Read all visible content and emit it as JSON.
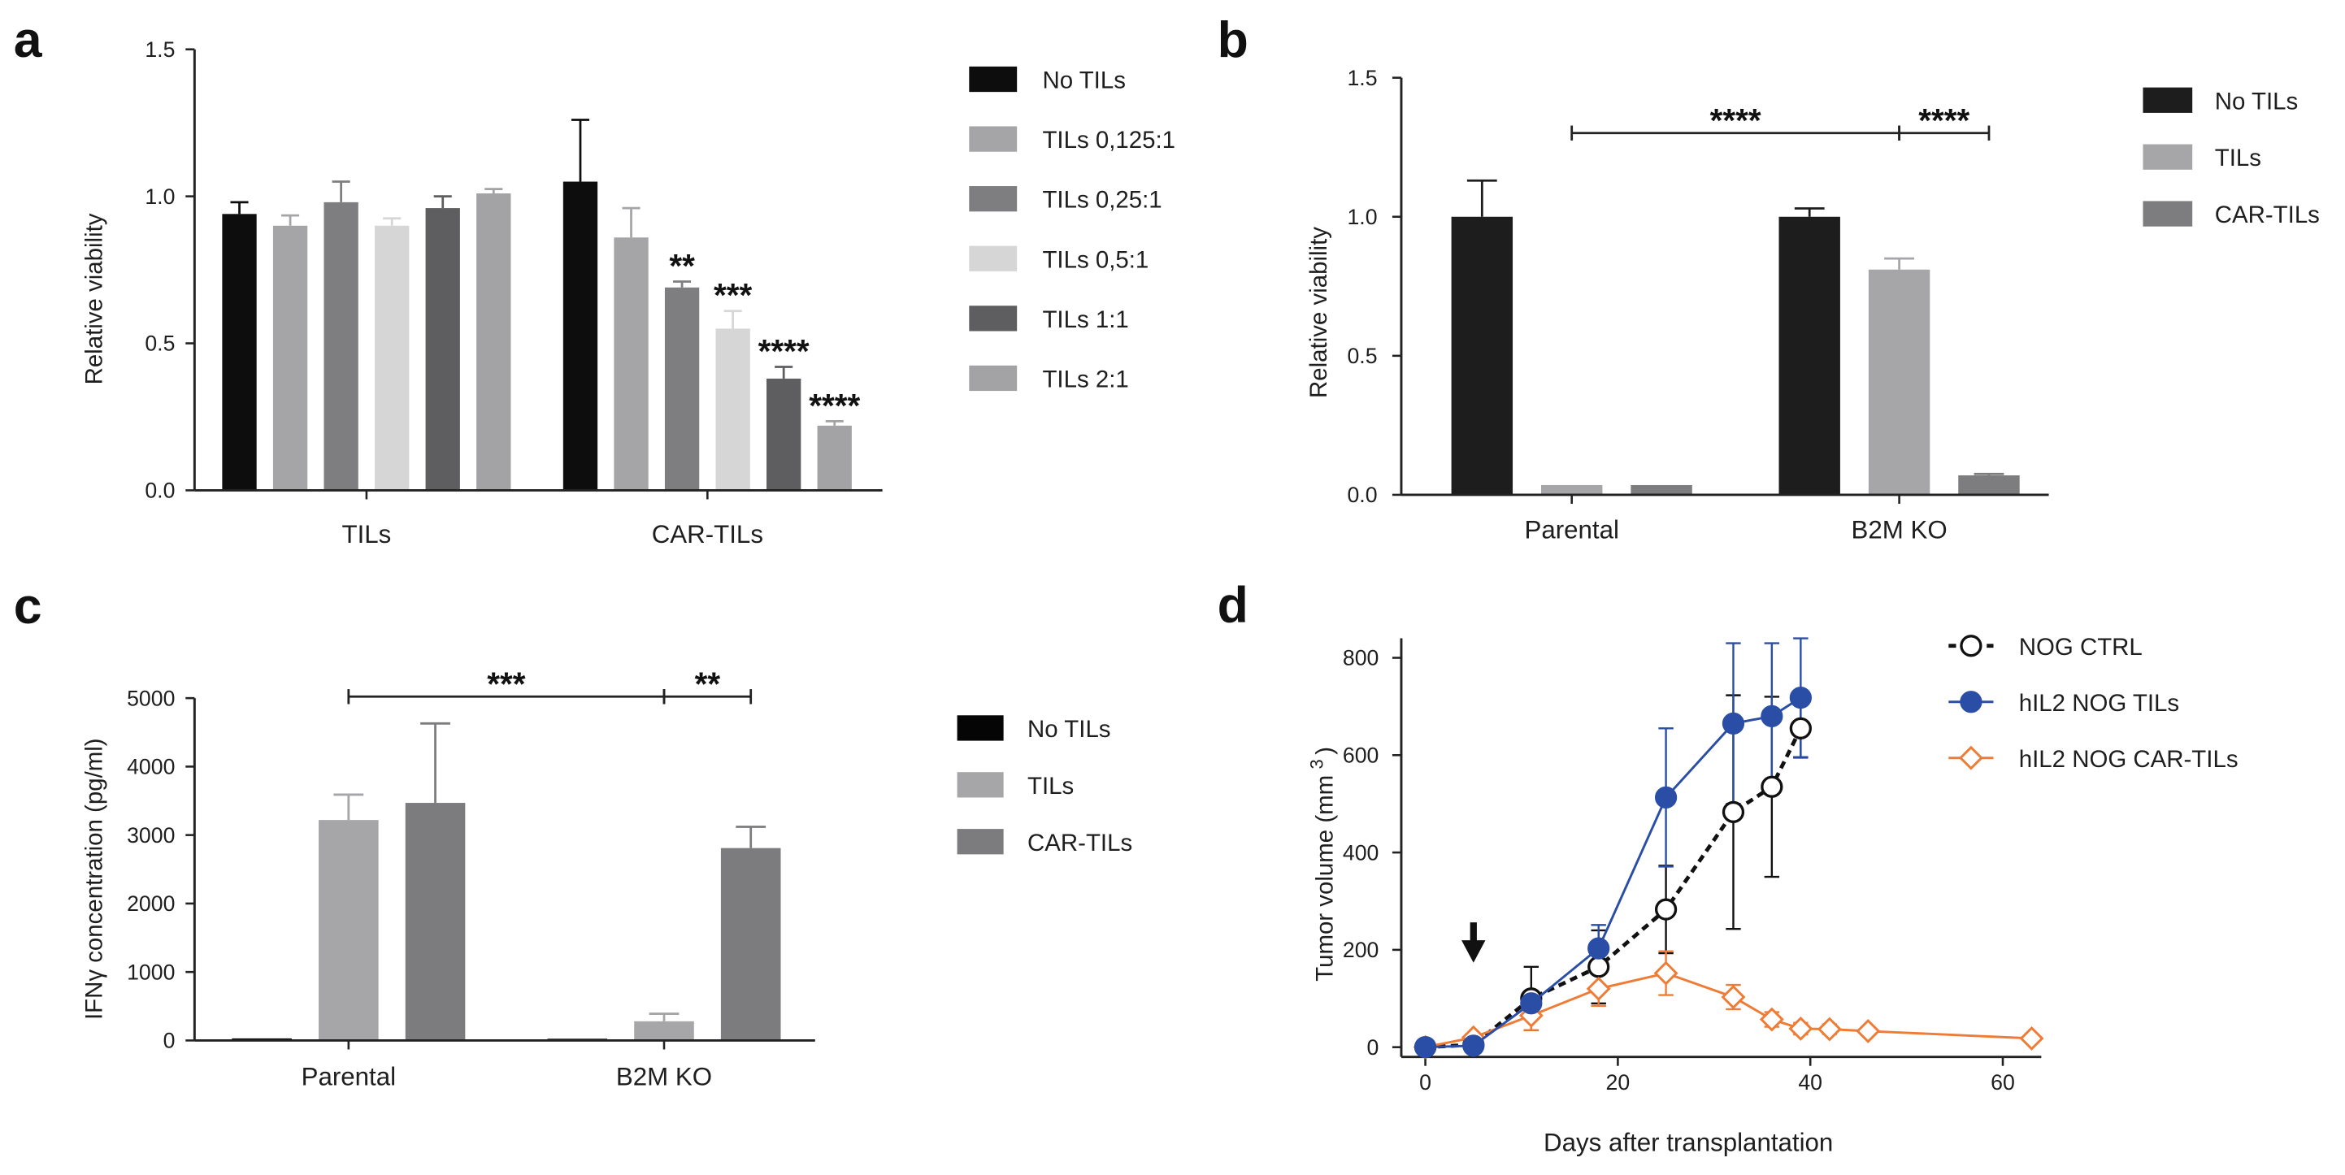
{
  "chart_data": [
    {
      "panel_label": "a",
      "type": "bar",
      "title": "",
      "xlabel": "",
      "ylabel": "Relative viability",
      "ylim": [
        0,
        1.5
      ],
      "yticks": [
        "0.0",
        "0.5",
        "1.0",
        "1.5"
      ],
      "categories": [
        "TILs",
        "CAR-TILs"
      ],
      "series": [
        {
          "name": "No TILs",
          "color": "#0d0d0d",
          "values": [
            0.94,
            1.05
          ],
          "error": [
            0.04,
            0.21
          ]
        },
        {
          "name": "TILs 0,125:1",
          "color": "#a5a5a8",
          "values": [
            0.9,
            0.86
          ],
          "error": [
            0.035,
            0.1
          ]
        },
        {
          "name": "TILs 0,25:1",
          "color": "#7e7e80",
          "values": [
            0.98,
            0.69
          ],
          "error": [
            0.07,
            0.02
          ]
        },
        {
          "name": "TILs 0,5:1",
          "color": "#d6d6d6",
          "values": [
            0.9,
            0.55
          ],
          "error": [
            0.025,
            0.06
          ]
        },
        {
          "name": "TILs 1:1",
          "color": "#5e5e60",
          "values": [
            0.96,
            0.38
          ],
          "error": [
            0.04,
            0.04
          ]
        },
        {
          "name": "TILs 2:1",
          "color": "#a3a3a6",
          "values": [
            1.01,
            0.22
          ],
          "error": [
            0.015,
            0.015
          ]
        }
      ],
      "annotations": [
        {
          "category": 1,
          "series": 2,
          "label": "**"
        },
        {
          "category": 1,
          "series": 3,
          "label": "***"
        },
        {
          "category": 1,
          "series": 4,
          "label": "****"
        },
        {
          "category": 1,
          "series": 5,
          "label": "****"
        }
      ],
      "significance": [],
      "legend_position": "right"
    },
    {
      "panel_label": "b",
      "type": "bar",
      "title": "",
      "xlabel": "",
      "ylabel": "Relative viability",
      "ylim": [
        0,
        1.5
      ],
      "yticks": [
        "0.0",
        "0.5",
        "1.0",
        "1.5"
      ],
      "categories": [
        "Parental",
        "B2M KO"
      ],
      "series": [
        {
          "name": "No TILs",
          "color": "#1d1d1d",
          "values": [
            1.0,
            1.0
          ],
          "error": [
            0.13,
            0.03
          ]
        },
        {
          "name": "TILs",
          "color": "#a6a6a9",
          "values": [
            0.035,
            0.81
          ],
          "error": [
            0,
            0.04
          ]
        },
        {
          "name": "CAR-TILs",
          "color": "#7d7d7f",
          "values": [
            0.035,
            0.07
          ],
          "error": [
            0,
            0.005
          ]
        }
      ],
      "annotations": [],
      "significance": [
        {
          "from": {
            "category": 0,
            "series": 1
          },
          "to": {
            "category": 1,
            "series": 1
          },
          "label": "****"
        },
        {
          "from": {
            "category": 1,
            "series": 1
          },
          "to": {
            "category": 1,
            "series": 2
          },
          "label": "****"
        }
      ],
      "legend_position": "right"
    },
    {
      "panel_label": "c",
      "type": "bar",
      "title": "",
      "xlabel": "",
      "ylabel": "IFNγ concentration (pg/ml)",
      "ylim": [
        0,
        5000
      ],
      "yticks": [
        "0",
        "1000",
        "2000",
        "3000",
        "4000",
        "5000"
      ],
      "categories": [
        "Parental",
        "B2M KO"
      ],
      "series": [
        {
          "name": "No TILs",
          "color": "#050505",
          "values": [
            30,
            25
          ],
          "error": [
            0,
            0
          ]
        },
        {
          "name": "TILs",
          "color": "#a6a6a9",
          "values": [
            3220,
            280
          ],
          "error": [
            370,
            110
          ]
        },
        {
          "name": "CAR-TILs",
          "color": "#7c7c7e",
          "values": [
            3470,
            2810
          ],
          "error": [
            1160,
            310
          ]
        }
      ],
      "annotations": [],
      "significance": [
        {
          "from": {
            "category": 0,
            "series": 1
          },
          "to": {
            "category": 1,
            "series": 1
          },
          "label": "***"
        },
        {
          "from": {
            "category": 1,
            "series": 1
          },
          "to": {
            "category": 1,
            "series": 2
          },
          "label": "**"
        }
      ],
      "legend_position": "right"
    },
    {
      "panel_label": "d",
      "type": "line",
      "title": "",
      "xlabel": "Days after transplantation",
      "ylabel": "Tumor volume (mm",
      "ylabel_superscript": "3",
      "ylabel_suffix": ")",
      "xlim": [
        -2.5,
        64
      ],
      "ylim": [
        -20,
        840
      ],
      "xticks": [
        "0",
        "20",
        "40",
        "60"
      ],
      "yticks": [
        "0",
        "200",
        "400",
        "600",
        "800"
      ],
      "treatment_day": 5,
      "series": [
        {
          "name": "NOG CTRL",
          "color": "#111111",
          "dashed": true,
          "marker_icon": "open-circle-icon",
          "x": [
            0,
            5,
            11,
            18,
            25,
            32,
            36,
            39
          ],
          "y": [
            0,
            5,
            100,
            165,
            283,
            483,
            535,
            655
          ],
          "error": [
            0,
            0,
            65,
            75,
            90,
            240,
            185,
            60
          ]
        },
        {
          "name": "hIL2 NOG TILs",
          "color": "#2a4ea6",
          "dashed": false,
          "marker_icon": "filled-circle-icon",
          "x": [
            0,
            5,
            11,
            18,
            25,
            32,
            36,
            39
          ],
          "y": [
            0,
            3,
            90,
            203,
            513,
            665,
            680,
            718
          ],
          "error": [
            0,
            0,
            20,
            48,
            142,
            165,
            150,
            122
          ]
        },
        {
          "name": "hIL2 NOG CAR-TILs",
          "color": "#ef7b35",
          "dashed": false,
          "marker_icon": "open-diamond-icon",
          "x": [
            0,
            5,
            11,
            18,
            25,
            32,
            36,
            39,
            42,
            46,
            63
          ],
          "y": [
            0,
            20,
            65,
            120,
            152,
            103,
            57,
            38,
            37,
            33,
            18
          ],
          "error": [
            0,
            0,
            30,
            35,
            45,
            25,
            15,
            12,
            10,
            8,
            5
          ]
        }
      ],
      "legend_position": "top-right"
    }
  ]
}
